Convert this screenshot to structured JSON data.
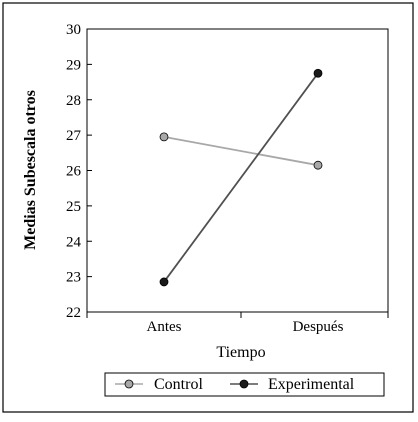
{
  "chart_data": {
    "type": "line",
    "categories": [
      "Antes",
      "Después"
    ],
    "series": [
      {
        "name": "Control",
        "values": [
          26.95,
          26.15
        ],
        "color": "#a8a8a8",
        "marker_fill": "#a8a8a8"
      },
      {
        "name": "Experimental",
        "values": [
          22.85,
          28.75
        ],
        "color": "#505050",
        "marker_fill": "#1a1a1a"
      }
    ],
    "xlabel": "Tiempo",
    "ylabel": "Medias Subescala otros",
    "ylim": [
      22,
      30
    ],
    "yticks": [
      22,
      23,
      24,
      25,
      26,
      27,
      28,
      29,
      30
    ],
    "grid": false,
    "legend_position": "bottom"
  }
}
